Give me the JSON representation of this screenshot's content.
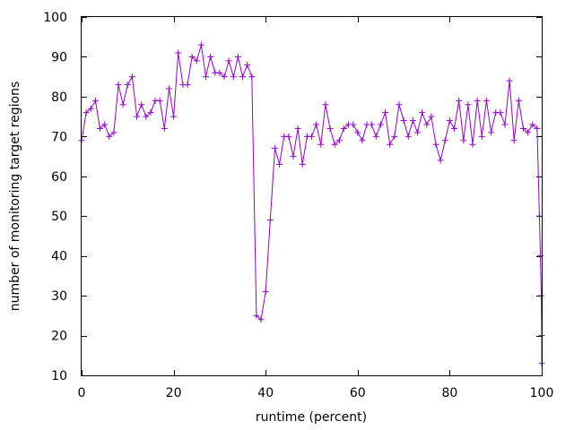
{
  "chart_data": {
    "type": "line",
    "xlabel": "runtime (percent)",
    "ylabel": "number of monitoring target regions",
    "xlim": [
      0,
      100
    ],
    "ylim": [
      10,
      100
    ],
    "x_ticks": [
      0,
      20,
      40,
      60,
      80,
      100
    ],
    "y_ticks": [
      10,
      20,
      30,
      40,
      50,
      60,
      70,
      80,
      90,
      100
    ],
    "grid": false,
    "legend": "none",
    "series": [
      {
        "color": "#9400d3",
        "marker": "plus",
        "points": [
          [
            0,
            69
          ],
          [
            1,
            76
          ],
          [
            2,
            77
          ],
          [
            3,
            79
          ],
          [
            4,
            72
          ],
          [
            5,
            73
          ],
          [
            6,
            70
          ],
          [
            7,
            71
          ],
          [
            8,
            83
          ],
          [
            9,
            78
          ],
          [
            10,
            83
          ],
          [
            11,
            85
          ],
          [
            12,
            75
          ],
          [
            13,
            78
          ],
          [
            14,
            75
          ],
          [
            15,
            76
          ],
          [
            16,
            79
          ],
          [
            17,
            79
          ],
          [
            18,
            72
          ],
          [
            19,
            82
          ],
          [
            20,
            75
          ],
          [
            21,
            91
          ],
          [
            22,
            83
          ],
          [
            23,
            83
          ],
          [
            24,
            90
          ],
          [
            25,
            89
          ],
          [
            26,
            93
          ],
          [
            27,
            85
          ],
          [
            28,
            90
          ],
          [
            29,
            86
          ],
          [
            30,
            86
          ],
          [
            31,
            85
          ],
          [
            32,
            89
          ],
          [
            33,
            85
          ],
          [
            34,
            90
          ],
          [
            35,
            85
          ],
          [
            36,
            88
          ],
          [
            37,
            85
          ],
          [
            38,
            25
          ],
          [
            39,
            24
          ],
          [
            40,
            31
          ],
          [
            41,
            49
          ],
          [
            42,
            67
          ],
          [
            43,
            63
          ],
          [
            44,
            70
          ],
          [
            45,
            70
          ],
          [
            46,
            65
          ],
          [
            47,
            72
          ],
          [
            48,
            63
          ],
          [
            49,
            70
          ],
          [
            50,
            70
          ],
          [
            51,
            73
          ],
          [
            52,
            68
          ],
          [
            53,
            78
          ],
          [
            54,
            72
          ],
          [
            55,
            68
          ],
          [
            56,
            69
          ],
          [
            57,
            72
          ],
          [
            58,
            73
          ],
          [
            59,
            73
          ],
          [
            60,
            71
          ],
          [
            61,
            69
          ],
          [
            62,
            73
          ],
          [
            63,
            73
          ],
          [
            64,
            70
          ],
          [
            65,
            73
          ],
          [
            66,
            76
          ],
          [
            67,
            68
          ],
          [
            68,
            70
          ],
          [
            69,
            78
          ],
          [
            70,
            74
          ],
          [
            71,
            70
          ],
          [
            72,
            74
          ],
          [
            73,
            71
          ],
          [
            74,
            76
          ],
          [
            75,
            73
          ],
          [
            76,
            75
          ],
          [
            77,
            68
          ],
          [
            78,
            64
          ],
          [
            79,
            69
          ],
          [
            80,
            74
          ],
          [
            81,
            72
          ],
          [
            82,
            79
          ],
          [
            83,
            69
          ],
          [
            84,
            78
          ],
          [
            85,
            68
          ],
          [
            86,
            79
          ],
          [
            87,
            70
          ],
          [
            88,
            79
          ],
          [
            89,
            71
          ],
          [
            90,
            76
          ],
          [
            91,
            76
          ],
          [
            92,
            73
          ],
          [
            93,
            84
          ],
          [
            94,
            69
          ],
          [
            95,
            79
          ],
          [
            96,
            72
          ],
          [
            97,
            71
          ],
          [
            98,
            73
          ],
          [
            99,
            72
          ],
          [
            99.5,
            50
          ],
          [
            99.7,
            40
          ],
          [
            99.9,
            30
          ],
          [
            100,
            20
          ],
          [
            100,
            13
          ]
        ]
      }
    ]
  }
}
